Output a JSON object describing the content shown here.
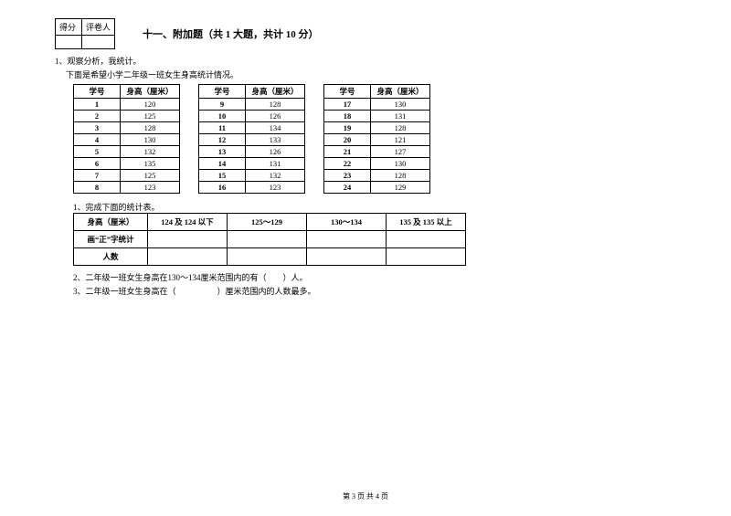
{
  "scorebox": {
    "col1": "得分",
    "col2": "评卷人"
  },
  "section_title": "十一、附加题（共 1 大题，共计 10 分）",
  "q_num": "1、观察分析，我统计。",
  "intro": "下面是希望小学二年级一班女生身高统计情况。",
  "headers": {
    "id": "学号",
    "height": "身高（厘米）"
  },
  "rows": [
    {
      "a_id": "1",
      "a_h": "120",
      "b_id": "9",
      "b_h": "128",
      "c_id": "17",
      "c_h": "130"
    },
    {
      "a_id": "2",
      "a_h": "125",
      "b_id": "10",
      "b_h": "126",
      "c_id": "18",
      "c_h": "131"
    },
    {
      "a_id": "3",
      "a_h": "128",
      "b_id": "11",
      "b_h": "134",
      "c_id": "19",
      "c_h": "128"
    },
    {
      "a_id": "4",
      "a_h": "130",
      "b_id": "12",
      "b_h": "133",
      "c_id": "20",
      "c_h": "121"
    },
    {
      "a_id": "5",
      "a_h": "132",
      "b_id": "13",
      "b_h": "126",
      "c_id": "21",
      "c_h": "127"
    },
    {
      "a_id": "6",
      "a_h": "135",
      "b_id": "14",
      "b_h": "131",
      "c_id": "22",
      "c_h": "130"
    },
    {
      "a_id": "7",
      "a_h": "125",
      "b_id": "15",
      "b_h": "132",
      "c_id": "23",
      "c_h": "128"
    },
    {
      "a_id": "8",
      "a_h": "123",
      "b_id": "16",
      "b_h": "123",
      "c_id": "24",
      "c_h": "129"
    }
  ],
  "sub1": "1、完成下面的统计表。",
  "stat_headers": {
    "h0": "身高（厘米）",
    "h1": "124 及 124 以下",
    "h2": "125～129",
    "h3": "130～134",
    "h4": "135 及 135 以上"
  },
  "stat_rows": {
    "r1": "画“正”字统计",
    "r2": "人数"
  },
  "sub2": "2、二年级一班女生身高在130～134厘米范围内的有（　　）人。",
  "sub3": "3、二年级一班女生身高在（　　　　　）厘米范围内的人数最多。",
  "footer": "第 3 页 共 4 页"
}
